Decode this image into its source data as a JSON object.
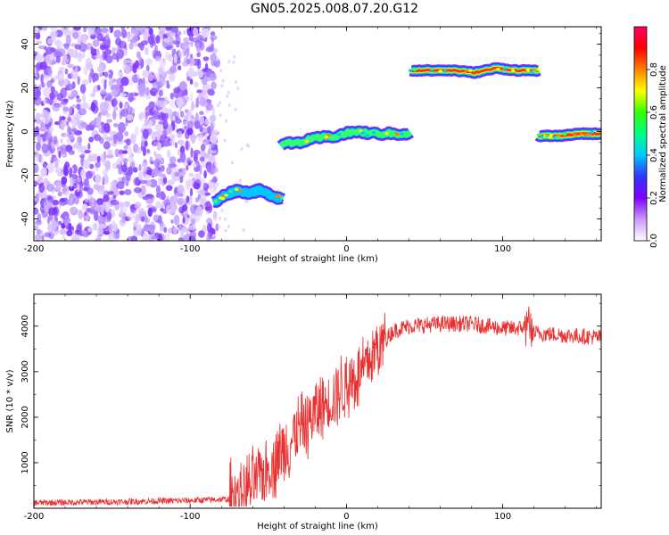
{
  "title": "GN05.2025.008.07.20.G12",
  "chart_data": [
    {
      "type": "heatmap",
      "xlabel": "Height of straight line (km)",
      "ylabel": "Frequency (Hz)",
      "xlim": [
        -200,
        163
      ],
      "ylim": [
        -50,
        48
      ],
      "xticks": [
        -200,
        -100,
        0,
        100
      ],
      "yticks": [
        -40,
        -20,
        0,
        20,
        40
      ],
      "colorbar": {
        "label": "Normalized spectral amplitude",
        "range": [
          0,
          1
        ],
        "ticks": [
          "0.0",
          "0.2",
          "0.4",
          "0.6",
          "0.8"
        ],
        "colors": [
          "#ffffff",
          "#cc99ff",
          "#7f00ff",
          "#3333ff",
          "#00c8ff",
          "#00ff88",
          "#33ff00",
          "#ffff00",
          "#ff8000",
          "#ff0000",
          "#ff0066"
        ]
      },
      "segments": [
        {
          "name": "noise",
          "x": [
            -200,
            -85
          ],
          "freq_range": [
            -50,
            48
          ]
        },
        {
          "name": "band-1",
          "x": [
            -85,
            -41
          ],
          "freq": [
            -33,
            -29,
            -27,
            -28,
            -27,
            -29,
            -31
          ]
        },
        {
          "name": "band-2",
          "x": [
            -42,
            41
          ],
          "freq": [
            -6,
            -5,
            -3,
            -2,
            0,
            -1,
            -1,
            -1
          ]
        },
        {
          "name": "band-3",
          "x": [
            41,
            123
          ],
          "freq": [
            28,
            28,
            28,
            27,
            29,
            28,
            28
          ]
        },
        {
          "name": "band-4",
          "x": [
            123,
            163
          ],
          "freq": [
            -2,
            -2,
            -1,
            -1
          ]
        }
      ]
    },
    {
      "type": "line",
      "xlabel": "Height of straight line (km)",
      "ylabel": "SNR (10 * v/v)",
      "xlim": [
        -200,
        163
      ],
      "ylim": [
        0,
        4700
      ],
      "xticks": [
        -200,
        -100,
        0,
        100
      ],
      "yticks": [
        1000,
        2000,
        3000,
        4000
      ],
      "color": "#e83030",
      "trend": {
        "x": [
          -200,
          -150,
          -100,
          -75,
          -60,
          -50,
          -40,
          -30,
          -20,
          -10,
          0,
          10,
          20,
          30,
          40,
          60,
          80,
          100,
          110,
          115,
          120,
          140,
          163
        ],
        "y": [
          120,
          140,
          170,
          200,
          500,
          900,
          1300,
          1700,
          2100,
          2400,
          2700,
          3000,
          3500,
          3900,
          4000,
          4050,
          4050,
          3950,
          3950,
          4000,
          3850,
          3800,
          3750
        ]
      }
    }
  ]
}
